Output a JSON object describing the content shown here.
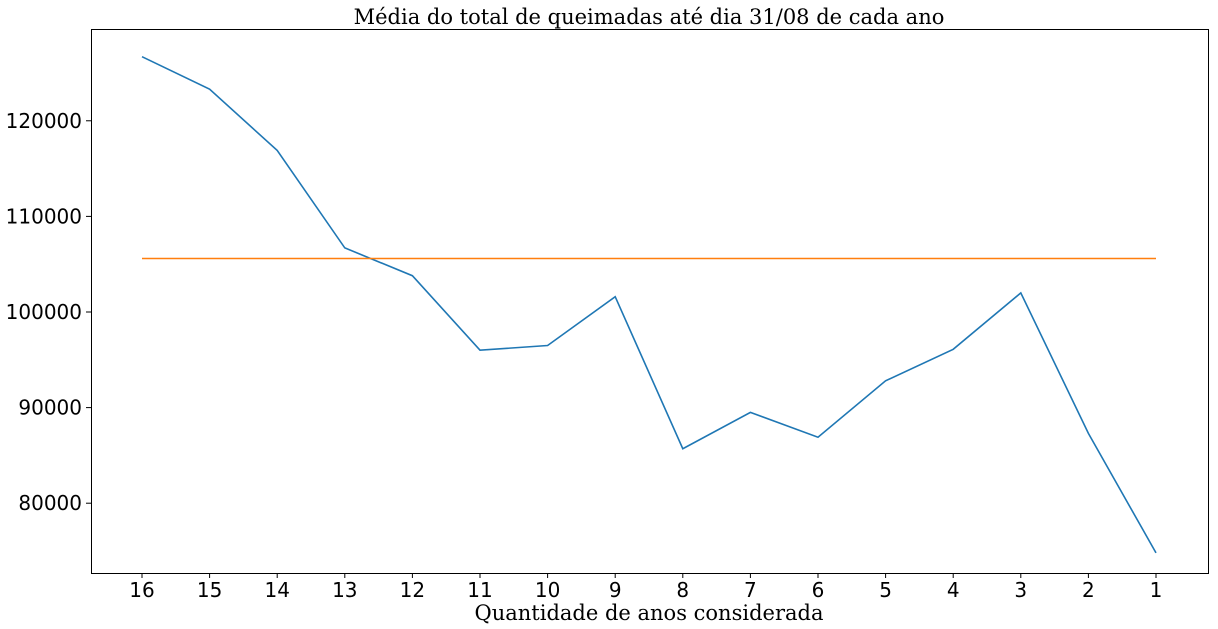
{
  "chart_data": {
    "type": "line",
    "title": "Média do total de queimadas até dia 31/08 de cada ano",
    "xlabel": "Quantidade de anos considerada",
    "ylabel": "",
    "categories": [
      "16",
      "15",
      "14",
      "13",
      "12",
      "11",
      "10",
      "9",
      "8",
      "7",
      "6",
      "5",
      "4",
      "3",
      "2",
      "1"
    ],
    "y_ticks": [
      80000,
      90000,
      100000,
      110000,
      120000
    ],
    "ylim": [
      72700,
      129600
    ],
    "grid": false,
    "legend": "none",
    "series": [
      {
        "color": "#1f77b4",
        "values": [
          126700,
          123300,
          116900,
          106700,
          103800,
          96000,
          96500,
          101600,
          85700,
          89500,
          86900,
          92800,
          96100,
          102000,
          87300,
          74800
        ]
      },
      {
        "color": "#ff7f0e",
        "values": [
          105600,
          105600,
          105600,
          105600,
          105600,
          105600,
          105600,
          105600,
          105600,
          105600,
          105600,
          105600,
          105600,
          105600,
          105600,
          105600
        ]
      }
    ]
  }
}
